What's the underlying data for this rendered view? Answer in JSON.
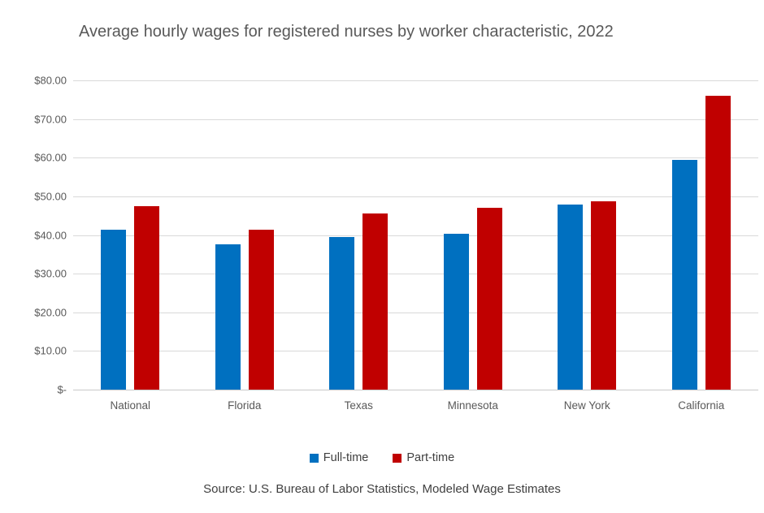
{
  "chart_data": {
    "type": "bar",
    "title": "Average hourly wages for registered nurses by worker characteristic, 2022",
    "categories": [
      "National",
      "Florida",
      "Texas",
      "Minnesota",
      "New York",
      "California"
    ],
    "series": [
      {
        "name": "Full-time",
        "color": "#0070C0",
        "values": [
          41.3,
          37.5,
          39.5,
          40.4,
          47.8,
          59.5
        ]
      },
      {
        "name": "Part-time",
        "color": "#C00000",
        "values": [
          47.4,
          41.4,
          45.6,
          47.1,
          48.7,
          76.1
        ]
      }
    ],
    "ylim": [
      0,
      80
    ],
    "yticks": [
      {
        "value": 0,
        "label": "$-"
      },
      {
        "value": 10,
        "label": "$10.00"
      },
      {
        "value": 20,
        "label": "$20.00"
      },
      {
        "value": 30,
        "label": "$30.00"
      },
      {
        "value": 40,
        "label": "$40.00"
      },
      {
        "value": 50,
        "label": "$50.00"
      },
      {
        "value": 60,
        "label": "$60.00"
      },
      {
        "value": 70,
        "label": "$70.00"
      },
      {
        "value": 80,
        "label": "$80.00"
      }
    ],
    "grid": true,
    "legend_position": "bottom",
    "gridline_color": "#d9d9d9",
    "axis_label_color": "#595959",
    "title_color": "#595959"
  },
  "source_note": "Source: U.S. Bureau of Labor Statistics, Modeled Wage Estimates"
}
